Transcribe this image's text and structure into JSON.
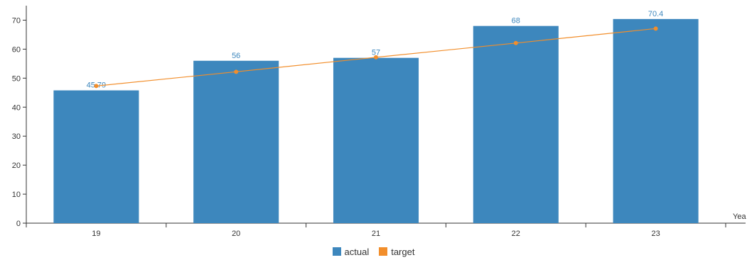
{
  "chart_data": {
    "type": "bar",
    "title": "",
    "xlabel": "Yea",
    "ylabel": "",
    "categories": [
      "19",
      "20",
      "21",
      "22",
      "23"
    ],
    "ylim": [
      0,
      75
    ],
    "yticks": [
      0,
      10,
      20,
      30,
      40,
      50,
      60,
      70
    ],
    "grid": false,
    "legend_position": "bottom",
    "series": [
      {
        "name": "actual",
        "type": "bar",
        "color": "#3d87bd",
        "values": [
          45.79,
          56,
          57,
          68,
          70.4
        ],
        "labels": [
          "45.79",
          "56",
          "57",
          "68",
          "70.4"
        ]
      },
      {
        "name": "target",
        "type": "line",
        "color": "#f28e2b",
        "values": [
          47.3,
          52.2,
          57.2,
          62.1,
          67.1
        ]
      }
    ]
  }
}
